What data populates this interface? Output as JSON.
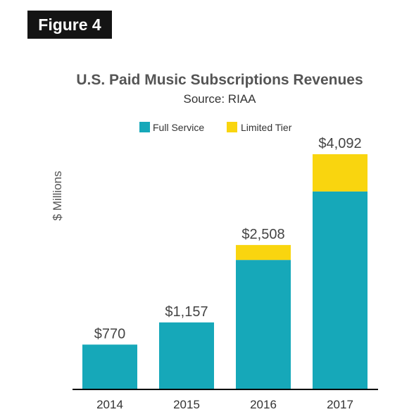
{
  "figure_label": "Figure 4",
  "chart_data": {
    "type": "bar",
    "stacked": true,
    "title": "U.S. Paid Music Subscriptions Revenues",
    "subtitle": "Source: RIAA",
    "xlabel": "",
    "ylabel": "$ Millions",
    "categories": [
      "2014",
      "2015",
      "2016",
      "2017"
    ],
    "series": [
      {
        "name": "Full Service",
        "color": "#16a8b9",
        "values": [
          770,
          1157,
          2247,
          3442
        ]
      },
      {
        "name": "Limited Tier",
        "color": "#f9d50f",
        "values": [
          0,
          0,
          261,
          650
        ]
      }
    ],
    "totals": [
      770,
      1157,
      2508,
      4092
    ],
    "total_labels": [
      "$770",
      "$1,157",
      "$2,508",
      "$4,092"
    ],
    "ylim": [
      0,
      4092
    ],
    "grid": false,
    "legend_position": "top-center"
  }
}
